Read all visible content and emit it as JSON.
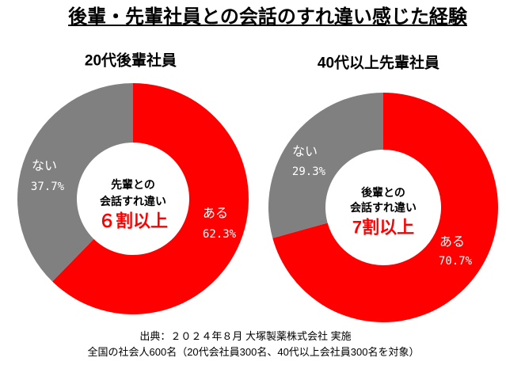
{
  "title": "後輩・先輩社員との会話のすれ違い感じた経験",
  "source": {
    "line1": "出典：２０２４年８月 大塚製薬株式会社 実施",
    "line2": "全国の社会人600名（20代会社員300名、40代以上会社員300名を対象）"
  },
  "style": {
    "highlight_color": "#ff0000",
    "label_color": "#ffffff"
  },
  "chart_data": [
    {
      "type": "pie",
      "donut": true,
      "title": "20代後輩社員",
      "categories": [
        "ある",
        "ない"
      ],
      "values": [
        62.3,
        37.7
      ],
      "value_labels": [
        "62.3%",
        "37.7%"
      ],
      "colors": [
        "#ff0000",
        "#808080"
      ],
      "center_text": {
        "line1": "先輩との",
        "line2": "会話すれ違い",
        "highlight": "６割以上"
      }
    },
    {
      "type": "pie",
      "donut": true,
      "title": "40代以上先輩社員",
      "categories": [
        "ある",
        "ない"
      ],
      "values": [
        70.7,
        29.3
      ],
      "value_labels": [
        "70.7%",
        "29.3%"
      ],
      "colors": [
        "#ff0000",
        "#808080"
      ],
      "center_text": {
        "line1": "後輩との",
        "line2": "会話すれ違い",
        "highlight": "7割以上"
      }
    }
  ]
}
